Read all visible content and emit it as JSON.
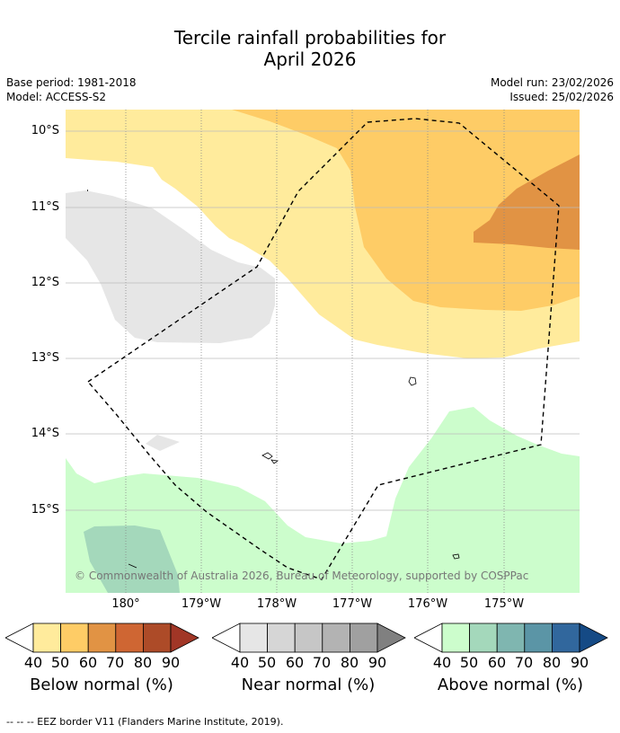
{
  "title": {
    "line1": "Tercile rainfall probabilities for",
    "line2": "April 2026"
  },
  "meta": {
    "base_period": "Base period: 1981-2018",
    "model": "Model: ACCESS-S2",
    "model_run": "Model run: 23/02/2026",
    "issued": "Issued: 25/02/2026"
  },
  "map": {
    "lat_labels": [
      "10°S",
      "11°S",
      "12°S",
      "13°S",
      "14°S",
      "15°S"
    ],
    "lon_labels": [
      "180°",
      "179°W",
      "178°W",
      "177°W",
      "176°W",
      "175°W"
    ],
    "copyright": "© Commonwealth of Australia 2026, Bureau of Meteorology, supported by COSPPac",
    "colors": {
      "below_40": "#ffeb9c",
      "below_50": "#fecc66",
      "below_60": "#e19344",
      "near_40": "#e6e6e6",
      "above_40": "#ccfdcc",
      "above_50": "#a4d8bb"
    }
  },
  "colorbars": [
    {
      "label": "Below normal (%)",
      "ticks": [
        "40",
        "50",
        "60",
        "70",
        "80",
        "90"
      ],
      "colors": [
        "#ffeb9c",
        "#fecc66",
        "#e19344",
        "#cf6633",
        "#ad4b28",
        "#a13626"
      ]
    },
    {
      "label": "Near normal (%)",
      "ticks": [
        "40",
        "50",
        "60",
        "70",
        "80",
        "90"
      ],
      "colors": [
        "#e6e6e6",
        "#d6d6d6",
        "#c6c6c6",
        "#b3b3b3",
        "#a0a0a0",
        "#808080"
      ]
    },
    {
      "label": "Above normal (%)",
      "ticks": [
        "40",
        "50",
        "60",
        "70",
        "80",
        "90"
      ],
      "colors": [
        "#ccfdcc",
        "#a4d8bb",
        "#7fb6b0",
        "#5b95a6",
        "#31679d",
        "#154a85"
      ]
    }
  ],
  "footnote": "--  --  -- EEZ border V11 (Flanders Marine Institute, 2019)."
}
